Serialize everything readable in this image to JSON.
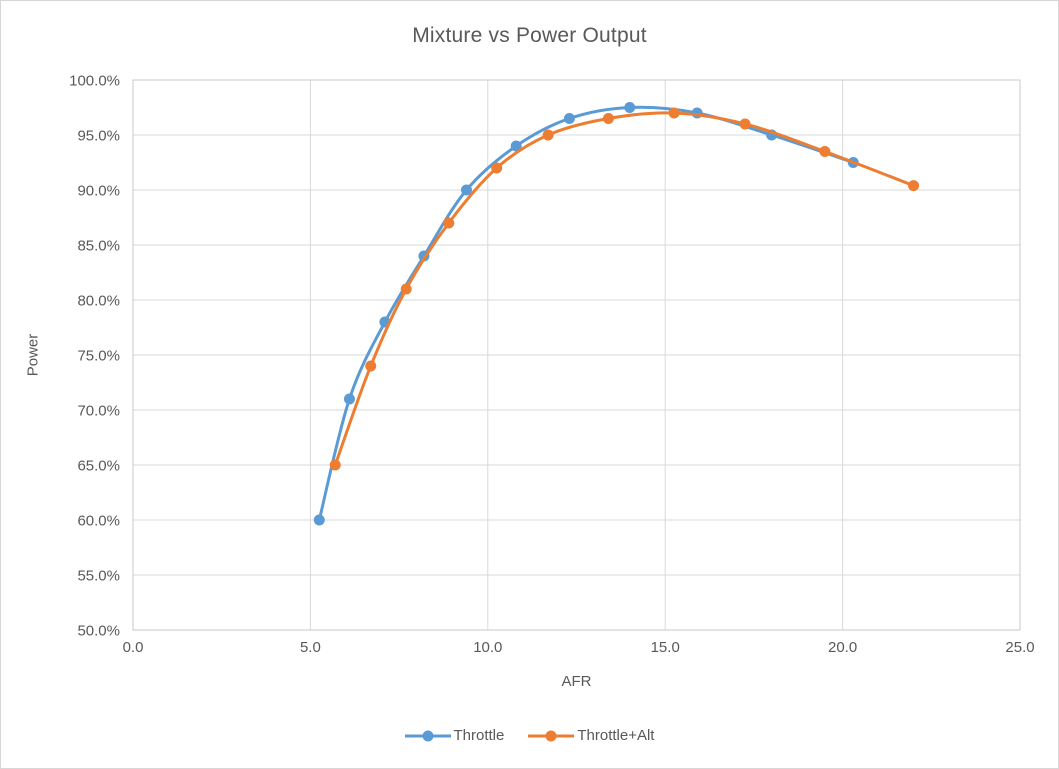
{
  "chart_data": {
    "type": "line",
    "title": "Mixture vs Power Output",
    "xlabel": "AFR",
    "ylabel": "Power",
    "xlim": [
      0,
      25
    ],
    "ylim": [
      50,
      100
    ],
    "grid": true,
    "legend_position": "bottom",
    "line_style": "smooth-with-markers",
    "x_ticks": [
      {
        "value": 0,
        "label": "0.0"
      },
      {
        "value": 5,
        "label": "5.0"
      },
      {
        "value": 10,
        "label": "10.0"
      },
      {
        "value": 15,
        "label": "15.0"
      },
      {
        "value": 20,
        "label": "20.0"
      },
      {
        "value": 25,
        "label": "25.0"
      }
    ],
    "y_ticks": [
      {
        "value": 50,
        "label": "50.0%"
      },
      {
        "value": 55,
        "label": "55.0%"
      },
      {
        "value": 60,
        "label": "60.0%"
      },
      {
        "value": 65,
        "label": "65.0%"
      },
      {
        "value": 70,
        "label": "70.0%"
      },
      {
        "value": 75,
        "label": "75.0%"
      },
      {
        "value": 80,
        "label": "80.0%"
      },
      {
        "value": 85,
        "label": "85.0%"
      },
      {
        "value": 90,
        "label": "90.0%"
      },
      {
        "value": 95,
        "label": "95.0%"
      },
      {
        "value": 100,
        "label": "100.0%"
      }
    ],
    "series": [
      {
        "name": "Throttle",
        "color": "#5B9BD5",
        "points": [
          [
            5.25,
            60
          ],
          [
            6.1,
            71
          ],
          [
            7.1,
            78
          ],
          [
            8.2,
            84
          ],
          [
            9.4,
            90
          ],
          [
            10.8,
            94
          ],
          [
            12.3,
            96.5
          ],
          [
            14.0,
            97.5
          ],
          [
            15.9,
            97.0
          ],
          [
            18.0,
            95.0
          ],
          [
            20.3,
            92.5
          ]
        ]
      },
      {
        "name": "Throttle+Alt",
        "color": "#ED7D31",
        "points": [
          [
            5.7,
            65
          ],
          [
            6.7,
            74
          ],
          [
            7.7,
            81
          ],
          [
            8.9,
            87
          ],
          [
            10.25,
            92
          ],
          [
            11.7,
            95
          ],
          [
            13.4,
            96.5
          ],
          [
            15.25,
            97.0
          ],
          [
            17.25,
            96.0
          ],
          [
            19.5,
            93.5
          ],
          [
            22.0,
            90.4
          ]
        ]
      }
    ],
    "colors": {
      "grid": "#D9D9D9",
      "axis": "#C9C9C9",
      "text": "#595959"
    }
  }
}
